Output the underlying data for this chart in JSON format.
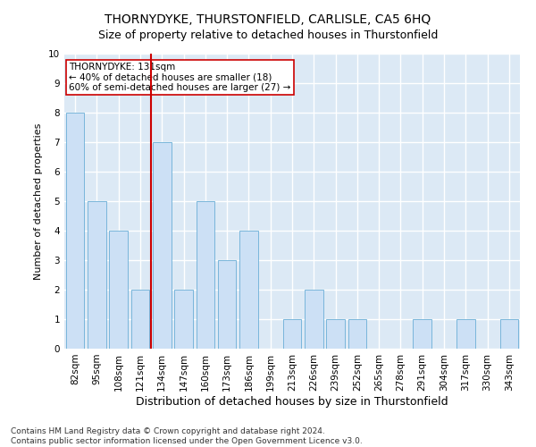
{
  "title": "THORNYDYKE, THURSTONFIELD, CARLISLE, CA5 6HQ",
  "subtitle": "Size of property relative to detached houses in Thurstonfield",
  "xlabel": "Distribution of detached houses by size in Thurstonfield",
  "ylabel": "Number of detached properties",
  "categories": [
    "82sqm",
    "95sqm",
    "108sqm",
    "121sqm",
    "134sqm",
    "147sqm",
    "160sqm",
    "173sqm",
    "186sqm",
    "199sqm",
    "213sqm",
    "226sqm",
    "239sqm",
    "252sqm",
    "265sqm",
    "278sqm",
    "291sqm",
    "304sqm",
    "317sqm",
    "330sqm",
    "343sqm"
  ],
  "values": [
    8,
    5,
    4,
    2,
    7,
    2,
    5,
    3,
    4,
    0,
    1,
    2,
    1,
    1,
    0,
    0,
    1,
    0,
    1,
    0,
    1
  ],
  "bar_color": "#cce0f5",
  "bar_edge_color": "#6aaed6",
  "reference_line_index": 4,
  "reference_line_color": "#cc0000",
  "annotation_line1": "THORNYDYKE: 131sqm",
  "annotation_line2": "← 40% of detached houses are smaller (18)",
  "annotation_line3": "60% of semi-detached houses are larger (27) →",
  "annotation_box_facecolor": "#ffffff",
  "annotation_box_edgecolor": "#cc0000",
  "ylim": [
    0,
    10
  ],
  "yticks": [
    0,
    1,
    2,
    3,
    4,
    5,
    6,
    7,
    8,
    9,
    10
  ],
  "footer": "Contains HM Land Registry data © Crown copyright and database right 2024.\nContains public sector information licensed under the Open Government Licence v3.0.",
  "fig_facecolor": "#ffffff",
  "plot_facecolor": "#dce9f5",
  "grid_color": "#ffffff",
  "title_fontsize": 10,
  "subtitle_fontsize": 9,
  "xlabel_fontsize": 9,
  "ylabel_fontsize": 8,
  "tick_fontsize": 7.5,
  "annotation_fontsize": 7.5,
  "footer_fontsize": 6.5,
  "bar_width": 0.85
}
